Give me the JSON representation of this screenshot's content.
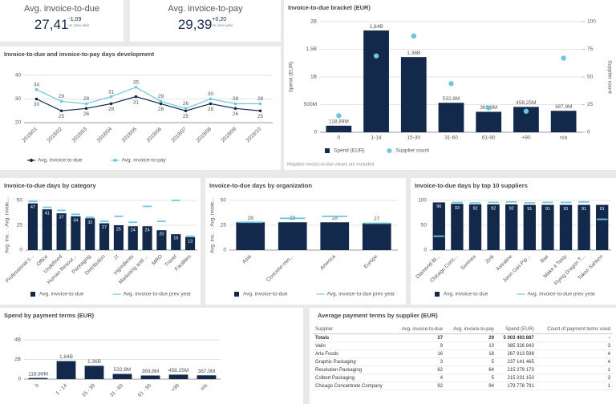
{
  "kpis": [
    {
      "title": "Avg. invoice-to-due",
      "value": "27,41",
      "delta": "-1,09",
      "note": "vs. prev year"
    },
    {
      "title": "Avg. invoice-to-pay",
      "value": "29,39",
      "delta": "+0,20",
      "note": "vs. prev year"
    }
  ],
  "chart_data": [
    {
      "type": "line",
      "title": "Invoice-to-due and invoice-to-pay days development",
      "categories": [
        "2018/01",
        "2018/02",
        "2018/03",
        "2018/04",
        "2018/05",
        "2018/06",
        "2018/07",
        "2018/08",
        "2018/09",
        "2018/10"
      ],
      "series": [
        {
          "name": "Avg. invoice-to-due",
          "color": "#13294b",
          "values": [
            30,
            25,
            26,
            28,
            31,
            28,
            25,
            28,
            26,
            25
          ]
        },
        {
          "name": "Avg. invoice-to-pay",
          "color": "#6cc7dd",
          "values": [
            34,
            29,
            28,
            31,
            35,
            29,
            26,
            30,
            28,
            28
          ]
        }
      ],
      "ylim": [
        20,
        40
      ],
      "yticks": [
        20,
        30,
        40
      ],
      "grid": true,
      "legend": true,
      "data_labels": true
    },
    {
      "type": "combo",
      "title": "Invoice-to-due bracket (EUR)",
      "categories": [
        "0",
        "1-14",
        "15-30",
        "31-60",
        "61-90",
        "+90",
        "n/a"
      ],
      "series": [
        {
          "name": "Spend (EUR)",
          "type": "bar",
          "color": "#13294b",
          "values": [
            118890000,
            1840000000,
            1360000000,
            532800000,
            369800000,
            458250000,
            387900000
          ],
          "value_labels": [
            "118,89M",
            "1,84B",
            "1,36B",
            "532,8M",
            "369,8M",
            "458,25M",
            "387,9M"
          ]
        },
        {
          "name": "Supplier count",
          "type": "scatter",
          "axis": "y2",
          "color": "#6cc7dd",
          "values": [
            15,
            69,
            87,
            44,
            22,
            19,
            67
          ]
        }
      ],
      "ylim": [
        0,
        2000000000
      ],
      "yticks": [
        0,
        {
          "value": 500000000,
          "label": "500M"
        },
        {
          "value": 1000000000,
          "label": "1B"
        },
        {
          "value": 1500000000,
          "label": "1,5B"
        },
        {
          "value": 2000000000,
          "label": "2B"
        }
      ],
      "y2lim": [
        0,
        100
      ],
      "y2ticks": [
        0,
        25,
        50,
        75,
        100
      ],
      "ylabel": "Spend (EUR)",
      "y2label": "Supplier count",
      "grid": true,
      "legend": true,
      "note": "Negative invoice-to-due values are excluded."
    },
    {
      "type": "bar",
      "title": "Invoice-to-due days by category",
      "categories": [
        "Professional s...",
        "Office",
        "Undefined",
        "Human Resour...",
        "Packaging",
        "Distribution",
        "IT",
        "Ingredients",
        "Marketing and ...",
        "MRO",
        "Travel",
        "Facilities"
      ],
      "series": [
        {
          "name": "Avg. invoice-to-due",
          "type": "bar",
          "color": "#13294b",
          "values": [
            47,
            41,
            37,
            34,
            32,
            27,
            25,
            24,
            24,
            20,
            16,
            13
          ]
        },
        {
          "name": "Avg. invoice-to-due prev year",
          "type": "marker",
          "color": "#6cc7dd",
          "values": [
            49,
            43,
            40,
            36,
            33,
            29,
            34,
            28,
            44,
            29,
            50,
            14
          ]
        }
      ],
      "ylim": [
        0,
        50
      ],
      "yticks": [
        0,
        25,
        50
      ],
      "ylabel": "Avg. inv... - Avg. invoic...",
      "grid": true,
      "legend": true,
      "data_labels": true
    },
    {
      "type": "bar",
      "title": "Invoice-to-due days by organization",
      "categories": [
        "Asia",
        "Concrete-min...",
        "America",
        "Europe"
      ],
      "series": [
        {
          "name": "Avg. invoice-to-due",
          "type": "bar",
          "color": "#13294b",
          "values": [
            28,
            28,
            28,
            27
          ]
        },
        {
          "name": "Avg. invoice-to-due prev year",
          "type": "marker",
          "color": "#6cc7dd",
          "values": [
            28,
            32,
            34,
            27
          ]
        }
      ],
      "ylim": [
        0,
        50
      ],
      "yticks": [
        0,
        25,
        50
      ],
      "ylabel": "Avg. inv... - Avg. invoic...",
      "grid": true,
      "legend": true,
      "data_labels": true
    },
    {
      "type": "bar",
      "title": "Invoice-to-due days by top 10 suppliers",
      "categories": [
        "Diamond Bl...",
        "Chicago Conc...",
        "Sonmex",
        "Zink",
        "Astraline",
        "Jiann Gas Pip...",
        "Bax",
        "Make it Tasty",
        "Flying Dragon T...",
        "Tokori Sahken"
      ],
      "series": [
        {
          "name": "Avg. invoice-to-due",
          "type": "bar",
          "color": "#13294b",
          "values": [
            96,
            93,
            92,
            92,
            92,
            91,
            91,
            91,
            91,
            91
          ]
        },
        {
          "name": "Avg. invoice-to-due prev year",
          "type": "marker",
          "color": "#6cc7dd",
          "values": [
            28,
            96,
            95,
            96,
            97,
            95,
            96,
            96,
            97,
            62
          ]
        }
      ],
      "ylim": [
        0,
        100
      ],
      "yticks": [
        0,
        50,
        100
      ],
      "grid": true,
      "legend": true,
      "data_labels": true
    },
    {
      "type": "bar",
      "title": "Spend by payment terms (EUR)",
      "categories": [
        "0",
        "1 - 14",
        "15 - 30",
        "31 - 60",
        "61 - 90",
        "+90",
        "n/a"
      ],
      "series": [
        {
          "type": "bar",
          "color": "#13294b",
          "values": [
            118890000,
            1840000000,
            1360000000,
            532800000,
            369800000,
            458250000,
            387900000
          ],
          "value_labels": [
            "118,89M",
            "1,84B",
            "1,36B",
            "532,8M",
            "369,8M",
            "458,25M",
            "387,9M"
          ]
        }
      ],
      "ylim": [
        0,
        4000000000
      ],
      "yticks": [
        0,
        {
          "value": 2000000000,
          "label": "2B"
        },
        {
          "value": 4000000000,
          "label": "4B"
        }
      ],
      "grid": true,
      "legend": false
    }
  ],
  "table": {
    "title": "Average payment terms by supplier (EUR)",
    "columns": [
      "Supplier",
      "Avg. invoice-to-due",
      "Avg. invoice-to-pay",
      "Spend (EUR)",
      "Count of payment terms used"
    ],
    "totals": [
      "Totals",
      "27",
      "29",
      "5 003 493 887",
      "-"
    ],
    "rows": [
      [
        "Valio",
        "9",
        "10",
        "385 326 843",
        "3"
      ],
      [
        "Arla Foods",
        "16",
        "18",
        "267 913 598",
        "4"
      ],
      [
        "Graphic Packaging",
        "3",
        "5",
        "237 141 465",
        "4"
      ],
      [
        "Resolution Packaging",
        "62",
        "64",
        "215 279 173",
        "1"
      ],
      [
        "Colbert Packaging",
        "4",
        "5",
        "215 231 150",
        "3"
      ],
      [
        "Chicago Concentrate Company",
        "92",
        "94",
        "179 778 791",
        "1"
      ]
    ]
  }
}
